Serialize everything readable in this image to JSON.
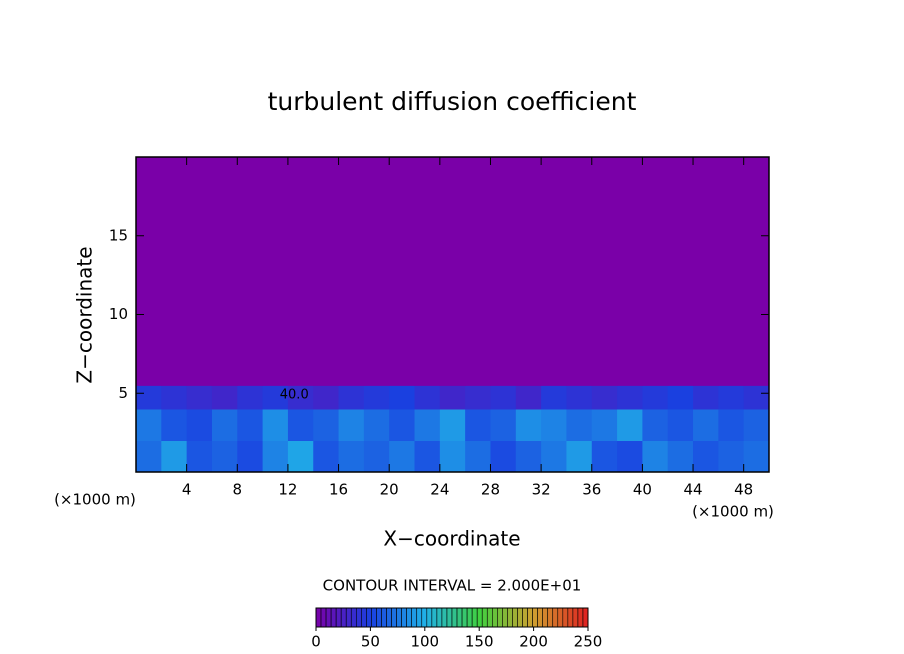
{
  "chart_data": {
    "type": "heatmap",
    "title": "turbulent diffusion coefficient",
    "xlabel": "X−coordinate",
    "ylabel": "Z−coordinate",
    "xunit": "(×1000 m)",
    "yunit": "(×1000 m)",
    "xlim": [
      0,
      50
    ],
    "ylim": [
      0,
      20
    ],
    "xticks": [
      4,
      8,
      12,
      16,
      20,
      24,
      28,
      32,
      36,
      40,
      44,
      48
    ],
    "yticks": [
      5,
      10,
      15
    ],
    "field": {
      "x_edges": [
        0,
        2,
        4,
        6,
        8,
        10,
        12,
        14,
        16,
        18,
        20,
        22,
        24,
        26,
        28,
        30,
        32,
        34,
        36,
        38,
        40,
        42,
        44,
        46,
        48,
        50
      ],
      "z_edges": [
        0,
        2,
        4,
        5.5,
        20
      ],
      "values": [
        [
          70,
          90,
          60,
          65,
          55,
          80,
          95,
          60,
          70,
          65,
          75,
          60,
          85,
          70,
          55,
          65,
          75,
          90,
          60,
          55,
          80,
          70,
          60,
          65,
          70
        ],
        [
          75,
          60,
          55,
          70,
          60,
          85,
          60,
          65,
          80,
          70,
          60,
          75,
          90,
          60,
          65,
          85,
          80,
          70,
          75,
          90,
          65,
          60,
          70,
          60,
          65
        ],
        [
          45,
          40,
          35,
          30,
          40,
          45,
          35,
          30,
          40,
          45,
          50,
          40,
          30,
          35,
          40,
          30,
          45,
          40,
          35,
          40,
          45,
          50,
          40,
          45,
          40
        ],
        [
          0,
          0,
          0,
          0,
          0,
          0,
          0,
          0,
          0,
          0,
          0,
          0,
          0,
          0,
          0,
          0,
          0,
          0,
          0,
          0,
          0,
          0,
          0,
          0,
          0
        ]
      ]
    },
    "annotations": [
      "40.0"
    ],
    "contour_interval_text": "CONTOUR INTERVAL = 2.000E+01",
    "colorbar": {
      "lim": [
        0,
        250
      ],
      "ticks": [
        0,
        50,
        100,
        150,
        200,
        250
      ],
      "colors": [
        "#7a00a8",
        "#1a40e0",
        "#20b0e8",
        "#40d040",
        "#d0a030",
        "#e02020"
      ]
    }
  }
}
